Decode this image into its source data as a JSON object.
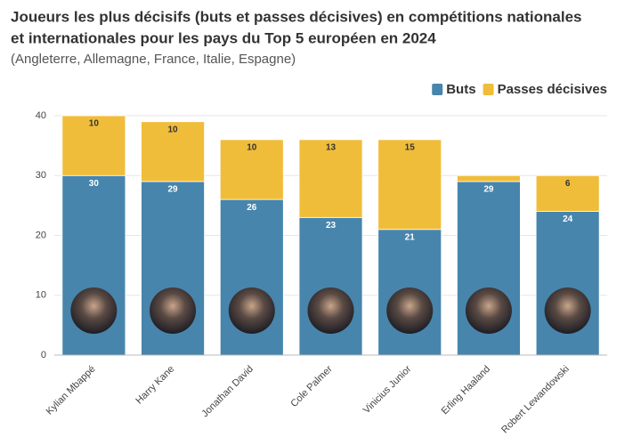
{
  "chart_data": {
    "type": "stacked_bar",
    "title": [
      "Joueurs les plus décisifs (buts et passes décisives) en compétitions nationales",
      "et internationales pour les pays du Top 5 européen en 2024"
    ],
    "subtitle": "(Angleterre, Allemagne, France, Italie, Espagne)",
    "categories": [
      "Kylian Mbappé",
      "Harry Kane",
      "Jonathan David",
      "Cole Palmer",
      "Vinicius Junior",
      "Erling Haaland",
      "Robert Lewandowski"
    ],
    "series": [
      {
        "name": "Buts",
        "color": "#4785ac",
        "values": [
          30,
          29,
          26,
          23,
          21,
          29,
          24
        ]
      },
      {
        "name": "Passes décisives",
        "color": "#f0bd3a",
        "values": [
          10,
          10,
          10,
          13,
          15,
          1,
          6
        ]
      }
    ],
    "ylim": [
      0,
      40
    ],
    "yticks": [
      0,
      10,
      20,
      30,
      40
    ],
    "grid": true,
    "legend": "top-right"
  }
}
